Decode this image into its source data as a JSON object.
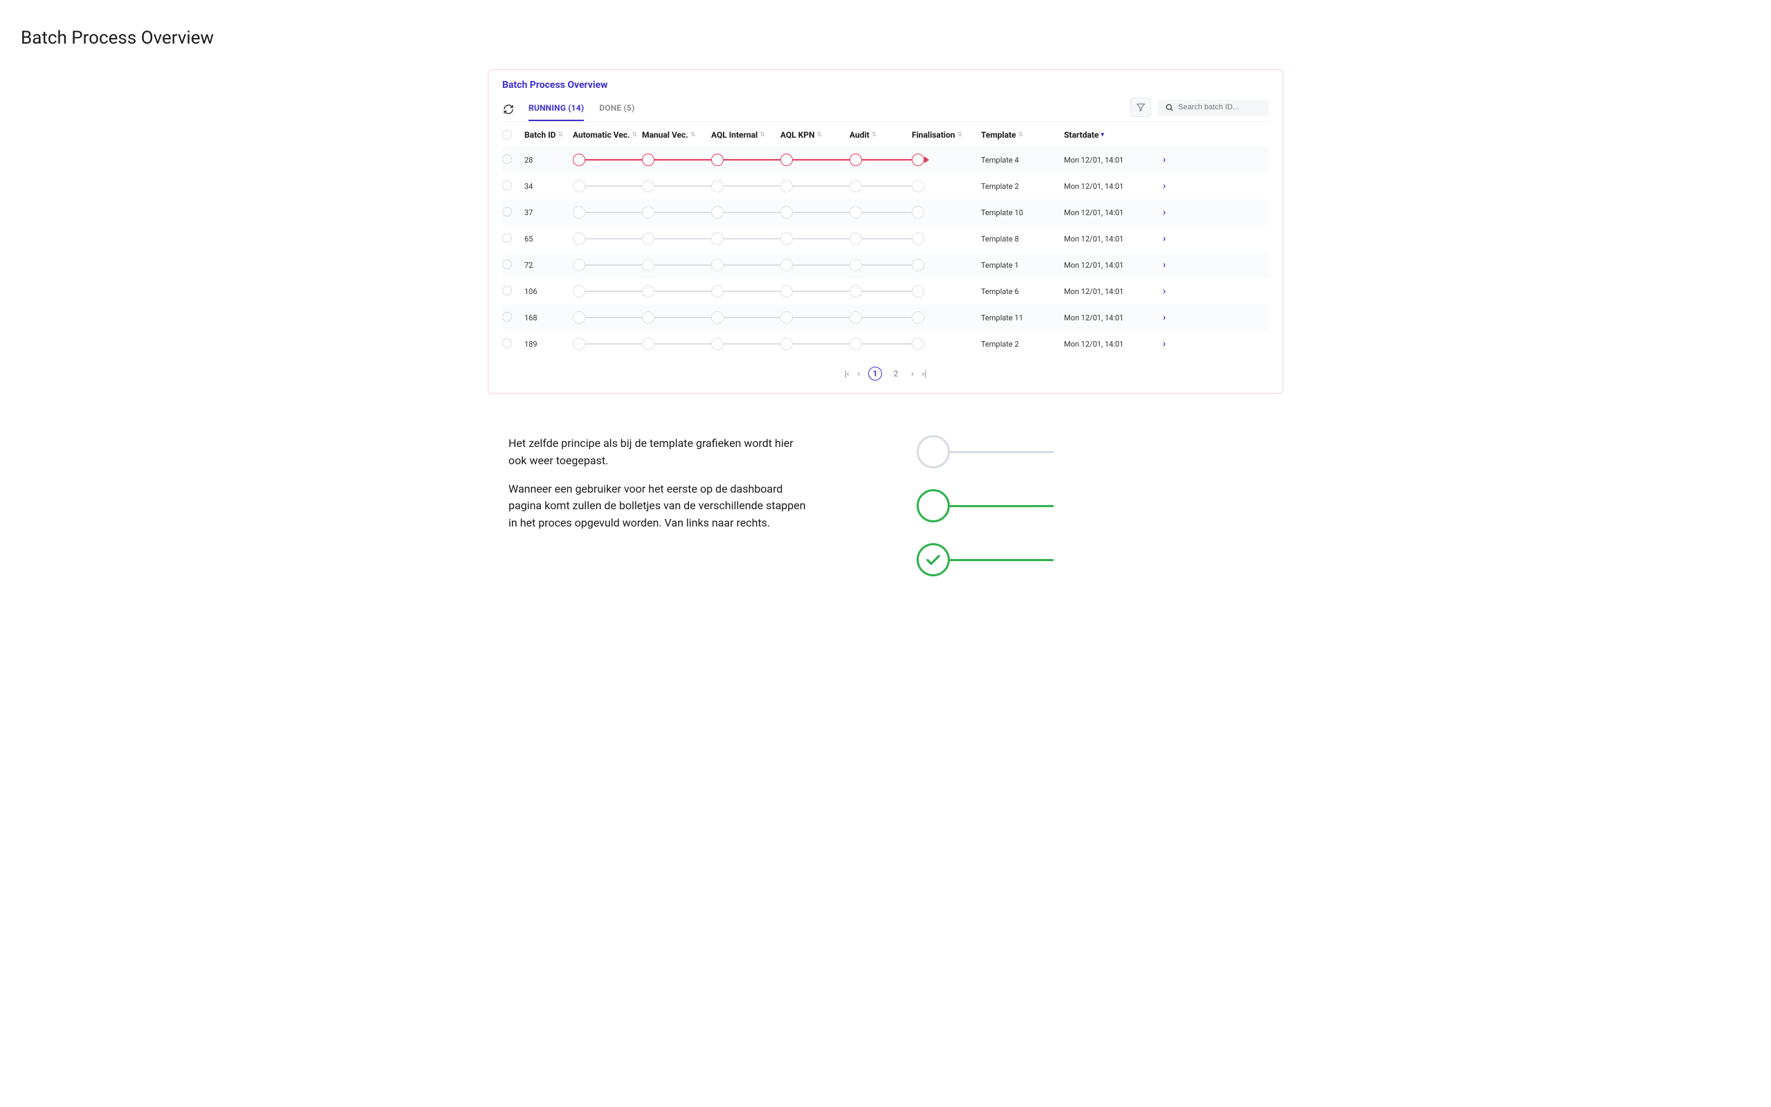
{
  "page": {
    "title": "Batch Process Overview"
  },
  "panel": {
    "title": "Batch Process Overview",
    "tabs": [
      {
        "label": "RUNNING (14)",
        "active": true
      },
      {
        "label": "DONE (5)",
        "active": false
      }
    ],
    "search_placeholder": "Search batch ID...",
    "columns": {
      "batch_id": "Batch ID",
      "auto_vec": "Automatic Vec.",
      "manual_vec": "Manual Vec.",
      "aql_internal": "AQL Internal",
      "aql_kpn": "AQL KPN",
      "audit": "Audit",
      "finalisation": "Finalisation",
      "template": "Template",
      "startdate": "Startdate"
    },
    "rows": [
      {
        "id": "28",
        "template": "Template 4",
        "startdate": "Mon 12/01, 14:01",
        "highlight": true
      },
      {
        "id": "34",
        "template": "Template 2",
        "startdate": "Mon 12/01, 14:01",
        "highlight": false
      },
      {
        "id": "37",
        "template": "Template 10",
        "startdate": "Mon 12/01, 14:01",
        "highlight": false
      },
      {
        "id": "65",
        "template": "Template 8",
        "startdate": "Mon 12/01, 14:01",
        "highlight": false
      },
      {
        "id": "72",
        "template": "Template 1",
        "startdate": "Mon 12/01, 14:01",
        "highlight": false
      },
      {
        "id": "106",
        "template": "Template 6",
        "startdate": "Mon 12/01, 14:01",
        "highlight": false
      },
      {
        "id": "168",
        "template": "Template 11",
        "startdate": "Mon 12/01, 14:01",
        "highlight": false
      },
      {
        "id": "189",
        "template": "Template 2",
        "startdate": "Mon 12/01, 14:01",
        "highlight": false
      }
    ],
    "pagination": {
      "pages": [
        "1",
        "2"
      ],
      "current": "1"
    }
  },
  "description": {
    "p1": "Het zelfde principe als bij de template grafieken wordt hier ook weer toegepast.",
    "p2": "Wanneer een gebruiker voor het eerste op de dashboard pagina komt zullen de bolletjes van de verschillende stappen in het proces opgevuld worden. Van links naar rechts."
  },
  "colors": {
    "accent": "#3b2ed0",
    "red": "#e43b5a",
    "green": "#2fb24c",
    "grey_line": "#dcdfe4",
    "panel_border": "#f8d0d8"
  }
}
